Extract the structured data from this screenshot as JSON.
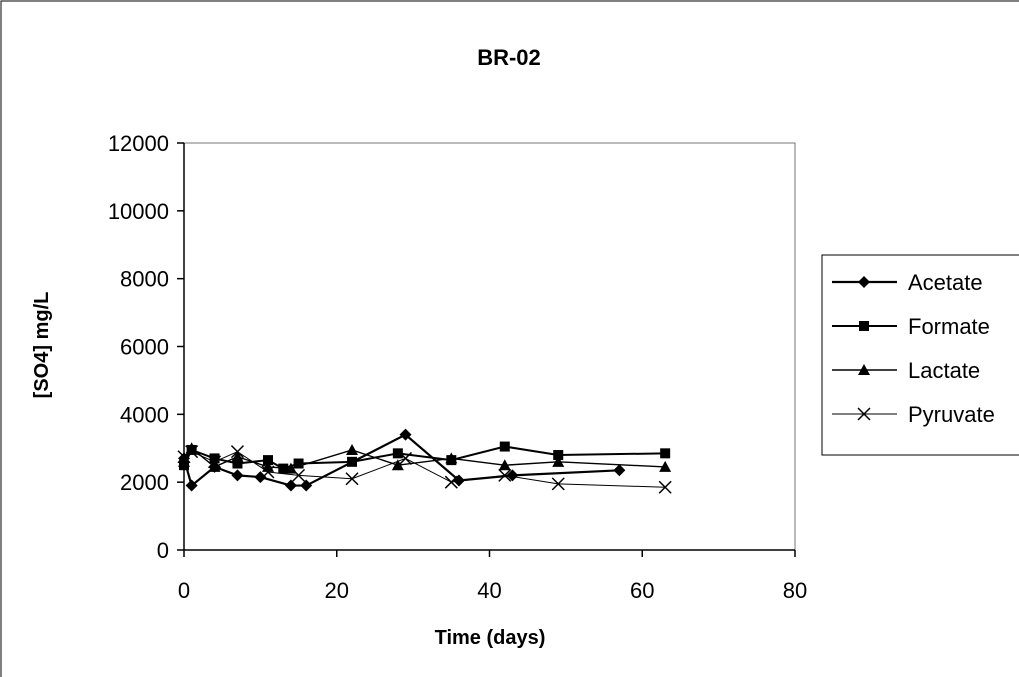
{
  "chart_data": {
    "type": "line",
    "title": "BR-02",
    "xlabel": "Time (days)",
    "ylabel": "[SO4] mg/L",
    "xlim": [
      0,
      80
    ],
    "ylim": [
      0,
      12000
    ],
    "xticks": [
      0,
      20,
      40,
      60,
      80
    ],
    "yticks": [
      0,
      2000,
      4000,
      6000,
      8000,
      10000,
      12000
    ],
    "grid": false,
    "legend_position": "right",
    "series": [
      {
        "name": "Acetate",
        "marker": "diamond",
        "color": "#000000",
        "x": [
          0,
          1,
          4,
          7,
          10,
          14,
          16,
          29,
          36,
          43,
          57
        ],
        "y": [
          2700,
          1900,
          2450,
          2200,
          2150,
          1900,
          1900,
          3400,
          2050,
          2200,
          2350
        ]
      },
      {
        "name": "Formate",
        "marker": "square",
        "color": "#000000",
        "x": [
          0,
          1,
          4,
          7,
          11,
          13,
          15,
          22,
          28,
          35,
          42,
          49,
          63
        ],
        "y": [
          2500,
          2950,
          2700,
          2550,
          2650,
          2400,
          2550,
          2600,
          2850,
          2650,
          3050,
          2800,
          2850
        ]
      },
      {
        "name": "Lactate",
        "marker": "triangle",
        "color": "#000000",
        "x": [
          0,
          1,
          4,
          7,
          11,
          14,
          22,
          28,
          35,
          42,
          49,
          63
        ],
        "y": [
          2600,
          3000,
          2450,
          2750,
          2450,
          2400,
          2950,
          2500,
          2700,
          2500,
          2600,
          2450
        ]
      },
      {
        "name": "Pyruvate",
        "marker": "x",
        "color": "#000000",
        "x": [
          0,
          1,
          4,
          7,
          11,
          15,
          22,
          29,
          35,
          42,
          49,
          63
        ],
        "y": [
          2750,
          2900,
          2600,
          2900,
          2300,
          2200,
          2100,
          2700,
          2000,
          2200,
          1950,
          1850
        ]
      }
    ]
  }
}
